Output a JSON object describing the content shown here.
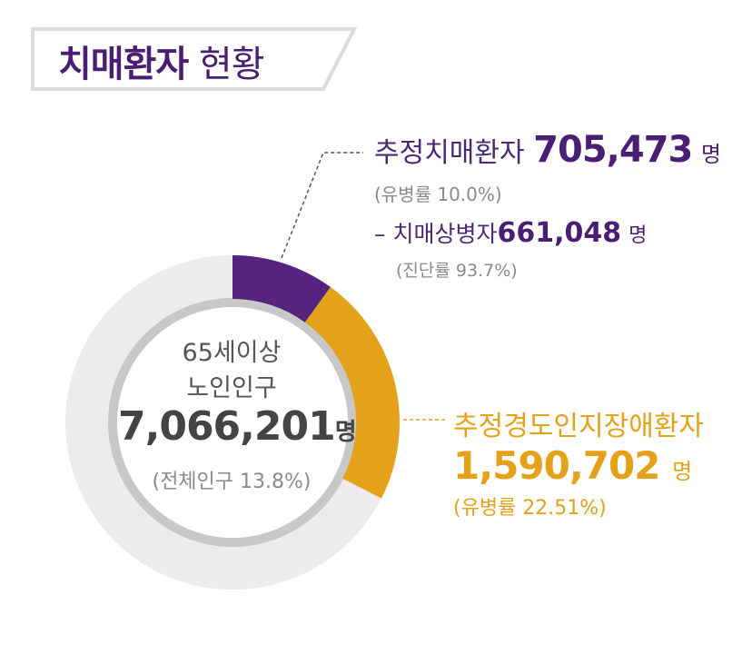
{
  "title": {
    "bold": "치매환자",
    "normal": "현황"
  },
  "chart_data": {
    "type": "pie",
    "title": "치매환자 현황",
    "total": {
      "label_line1": "65세이상",
      "label_line2": "노인인구",
      "value": 7066201,
      "value_text": "7,066,201",
      "unit": "명",
      "share_text": "(전체인구 13.8%)"
    },
    "slices": [
      {
        "label": "추정치매환자",
        "value": 705473,
        "value_text": "705,473",
        "unit": "명",
        "rate_text": "(유병률 10.0%)",
        "color": "#56237f",
        "sub": {
          "label": "치매상병자",
          "value": 661048,
          "value_text": "661,048",
          "unit": "명",
          "rate_text": "(진단률 93.7%)"
        }
      },
      {
        "label": "추정경도인지장애환자",
        "value": 1590702,
        "value_text": "1,590,702",
        "unit": "명",
        "rate_text": "(유병률 22.51%)",
        "color": "#e3a21a"
      }
    ]
  },
  "colors": {
    "purple": "#56237f",
    "gold": "#e3a21a",
    "track": "#ececec",
    "inner_ring": "#c8c8c8",
    "title_text": "#4a1f73"
  }
}
